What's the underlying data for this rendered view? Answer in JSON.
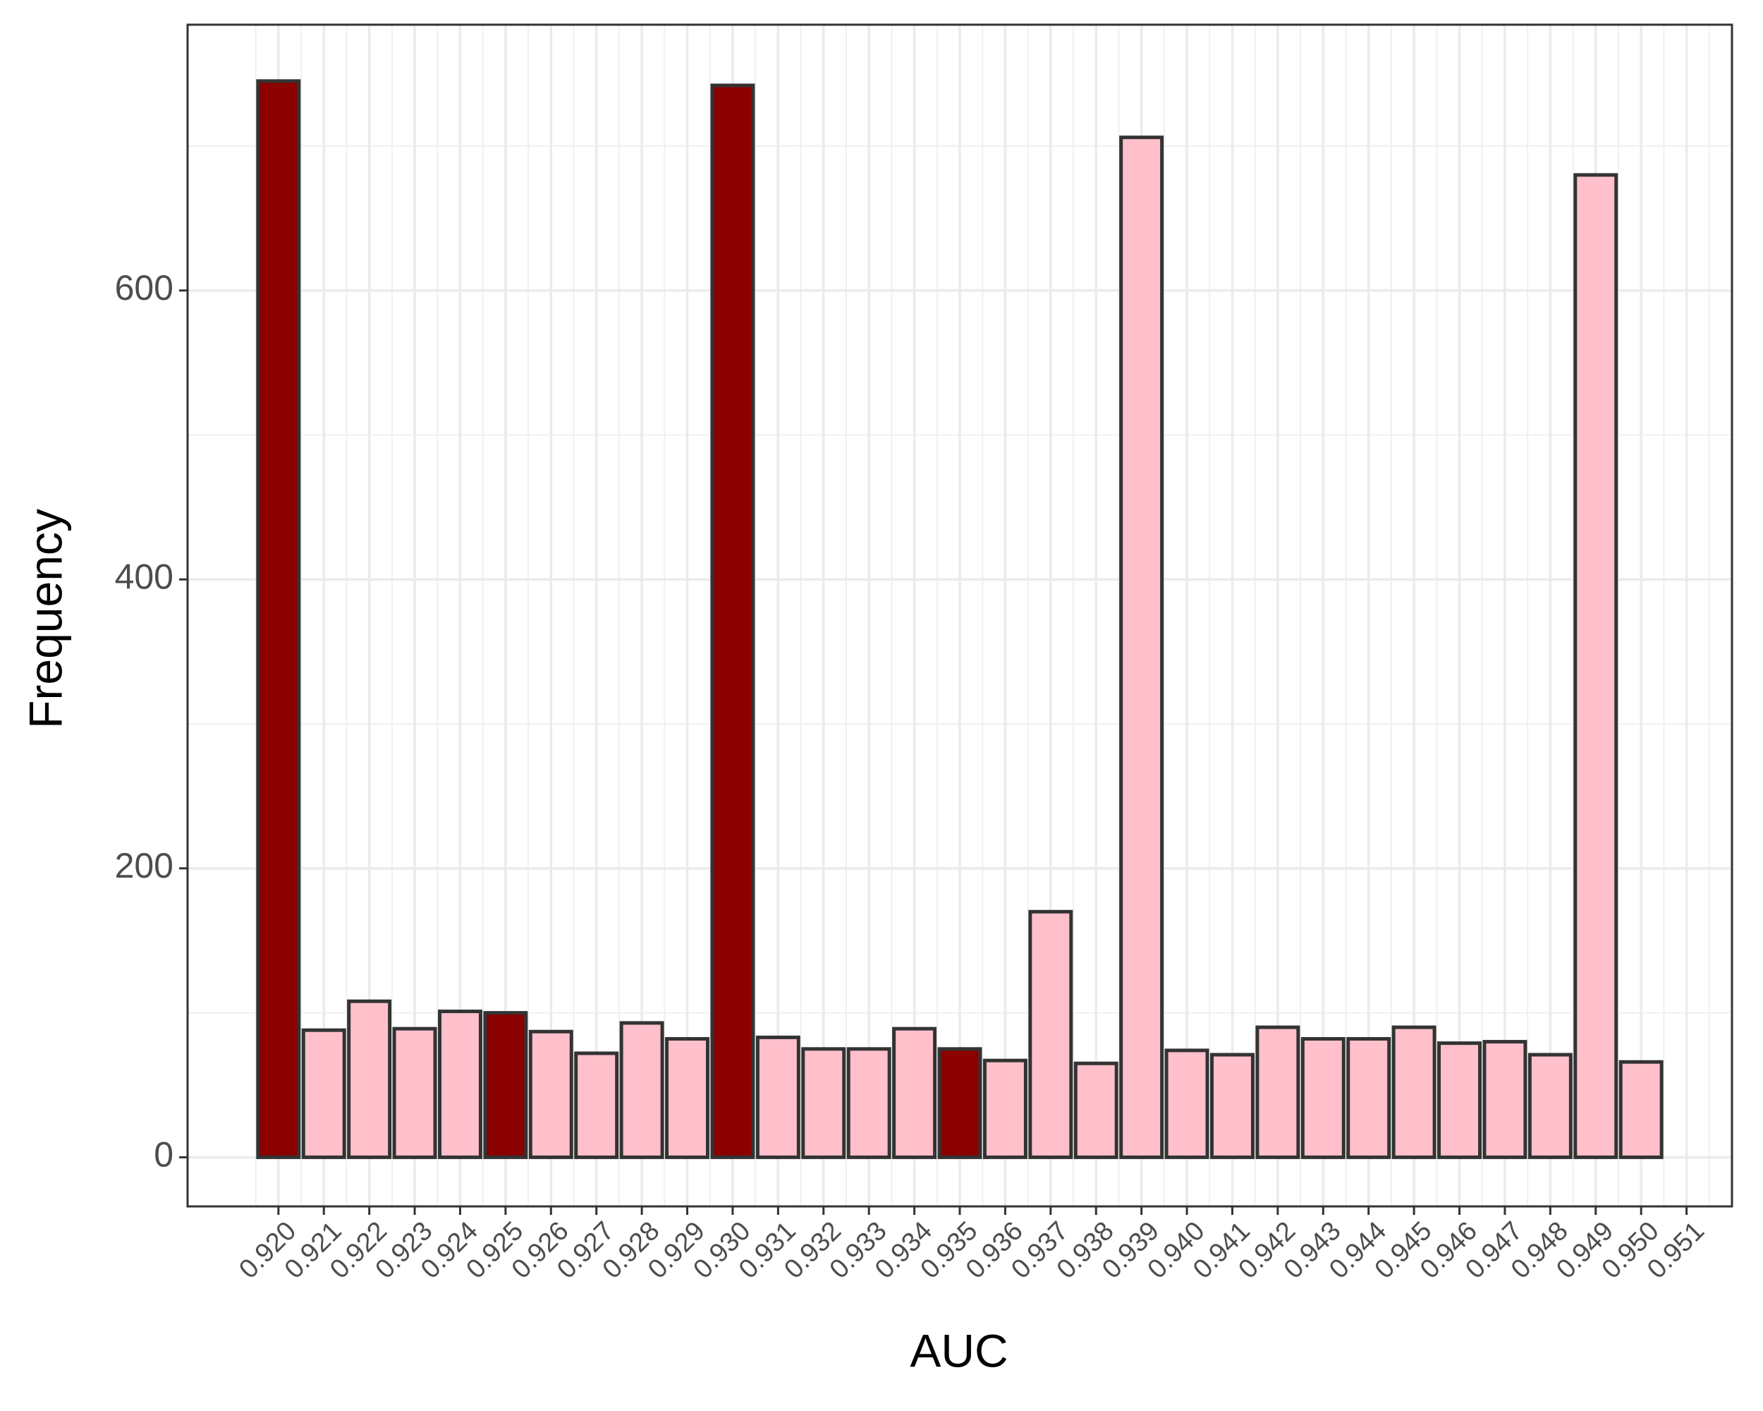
{
  "chart_data": {
    "type": "bar",
    "xlabel": "AUC",
    "ylabel": "Frequency",
    "x": [
      0.92,
      0.921,
      0.922,
      0.923,
      0.924,
      0.925,
      0.926,
      0.927,
      0.928,
      0.929,
      0.93,
      0.931,
      0.932,
      0.933,
      0.934,
      0.935,
      0.936,
      0.937,
      0.938,
      0.939,
      0.94,
      0.941,
      0.942,
      0.943,
      0.944,
      0.945,
      0.946,
      0.947,
      0.948,
      0.949,
      0.95
    ],
    "values": [
      745,
      88,
      108,
      89,
      101,
      100,
      87,
      72,
      93,
      82,
      742,
      83,
      75,
      75,
      89,
      75,
      67,
      170,
      65,
      706,
      74,
      71,
      90,
      82,
      82,
      90,
      79,
      80,
      71,
      680,
      66
    ],
    "colors": [
      "#8b0000",
      "#ffc0cb",
      "#ffc0cb",
      "#ffc0cb",
      "#ffc0cb",
      "#8b0000",
      "#ffc0cb",
      "#ffc0cb",
      "#ffc0cb",
      "#ffc0cb",
      "#8b0000",
      "#ffc0cb",
      "#ffc0cb",
      "#ffc0cb",
      "#ffc0cb",
      "#8b0000",
      "#ffc0cb",
      "#ffc0cb",
      "#ffc0cb",
      "#ffc0cb",
      "#ffc0cb",
      "#ffc0cb",
      "#ffc0cb",
      "#ffc0cb",
      "#ffc0cb",
      "#ffc0cb",
      "#ffc0cb",
      "#ffc0cb",
      "#ffc0cb",
      "#ffc0cb",
      "#ffc0cb"
    ],
    "edgecolor": "#333333",
    "bar_width": 0.0009,
    "xlim": [
      0.918,
      0.952
    ],
    "ylim": [
      -34,
      784
    ],
    "xticks": [
      {
        "value": 0.92,
        "label": "0.920"
      },
      {
        "value": 0.921,
        "label": "0.921"
      },
      {
        "value": 0.922,
        "label": "0.922"
      },
      {
        "value": 0.923,
        "label": "0.923"
      },
      {
        "value": 0.924,
        "label": "0.924"
      },
      {
        "value": 0.925,
        "label": "0.925"
      },
      {
        "value": 0.926,
        "label": "0.926"
      },
      {
        "value": 0.927,
        "label": "0.927"
      },
      {
        "value": 0.928,
        "label": "0.928"
      },
      {
        "value": 0.929,
        "label": "0.929"
      },
      {
        "value": 0.93,
        "label": "0.930"
      },
      {
        "value": 0.931,
        "label": "0.931"
      },
      {
        "value": 0.932,
        "label": "0.932"
      },
      {
        "value": 0.933,
        "label": "0.933"
      },
      {
        "value": 0.934,
        "label": "0.934"
      },
      {
        "value": 0.935,
        "label": "0.935"
      },
      {
        "value": 0.936,
        "label": "0.936"
      },
      {
        "value": 0.937,
        "label": "0.937"
      },
      {
        "value": 0.938,
        "label": "0.938"
      },
      {
        "value": 0.939,
        "label": "0.939"
      },
      {
        "value": 0.94,
        "label": "0.940"
      },
      {
        "value": 0.941,
        "label": "0.941"
      },
      {
        "value": 0.942,
        "label": "0.942"
      },
      {
        "value": 0.943,
        "label": "0.943"
      },
      {
        "value": 0.944,
        "label": "0.944"
      },
      {
        "value": 0.945,
        "label": "0.945"
      },
      {
        "value": 0.946,
        "label": "0.946"
      },
      {
        "value": 0.947,
        "label": "0.947"
      },
      {
        "value": 0.948,
        "label": "0.948"
      },
      {
        "value": 0.949,
        "label": "0.949"
      },
      {
        "value": 0.95,
        "label": "0.950"
      },
      {
        "value": 0.951,
        "label": "0.951"
      }
    ],
    "yticks": [
      0,
      200,
      400,
      600
    ],
    "grid": true
  }
}
